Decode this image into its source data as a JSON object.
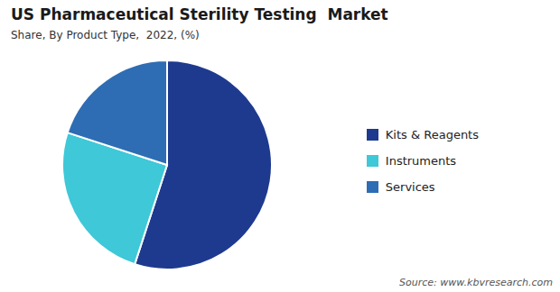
{
  "chart_data": {
    "type": "pie",
    "title": "US Pharmaceutical Sterility Testing  Market",
    "subtitle": "Share, By Product Type,  2022, (%)",
    "source": "Source: www.kbvresearch.com",
    "categories": [
      "Kits & Reagents",
      "Instruments",
      "Services"
    ],
    "values": [
      55,
      25,
      20
    ],
    "colors": [
      "#1e3a8f",
      "#3ec8d8",
      "#2e6db4"
    ],
    "legend": "right"
  }
}
